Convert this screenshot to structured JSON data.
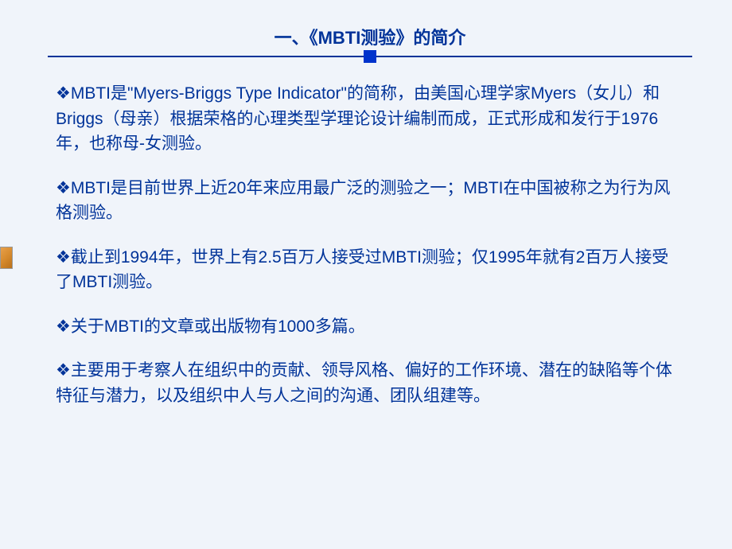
{
  "slide": {
    "title": "一、《MBTI测验》的简介",
    "bullets": [
      "MBTI是\"Myers-Briggs Type Indicator\"的简称，由美国心理学家Myers（女儿）和Briggs（母亲）根据荣格的心理类型学理论设计编制而成，正式形成和发行于1976年，也称母-女测验。",
      "MBTI是目前世界上近20年来应用最广泛的测验之一；MBTI在中国被称之为行为风格测验。",
      "截止到1994年，世界上有2.5百万人接受过MBTI测验；仅1995年就有2百万人接受了MBTI测验。",
      "关于MBTI的文章或出版物有1000多篇。",
      "主要用于考察人在组织中的贡献、领导风格、偏好的工作环境、潜在的缺陷等个体特征与潜力，以及组织中人与人之间的沟通、团队组建等。"
    ],
    "bullet_marker": "❖",
    "colors": {
      "background": "#f0f4fa",
      "text": "#003399",
      "accent": "#0033cc"
    }
  }
}
